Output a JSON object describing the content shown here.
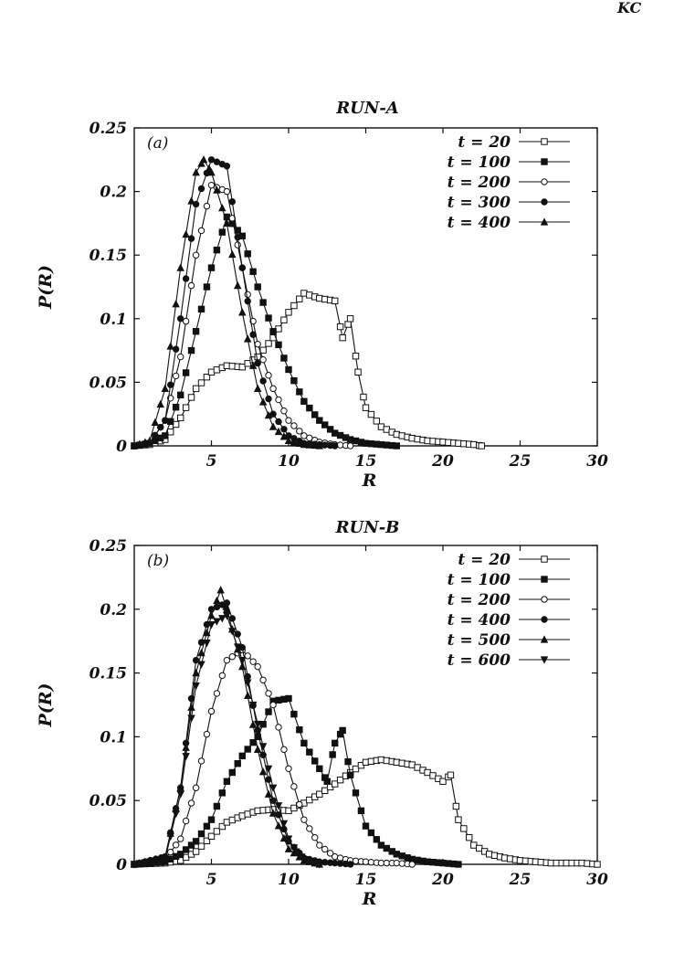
{
  "corner_mark": "KC",
  "chart_data": [
    {
      "type": "line",
      "title": "RUN-A",
      "panel_tag": "(a)",
      "xlabel": "R",
      "ylabel": "P(R)",
      "xlim": [
        0,
        30
      ],
      "ylim": [
        0,
        0.25
      ],
      "xticks": [
        5,
        10,
        15,
        20,
        25,
        30
      ],
      "xtick_labels": [
        "5",
        "10",
        "15",
        "20",
        "25",
        "30"
      ],
      "yticks": [
        0,
        0.05,
        0.1,
        0.15,
        0.2,
        0.25
      ],
      "ytick_labels": [
        "0",
        "0.05",
        "0.1",
        "0.15",
        "0.2",
        "0.25"
      ],
      "legend_position": "top-right",
      "grid": false,
      "series": [
        {
          "name": "t = 20",
          "marker": "open-square",
          "x": [
            0,
            1,
            2,
            3,
            4,
            5,
            6,
            7,
            8,
            9,
            10,
            11,
            12,
            13,
            13.5,
            14,
            14.5,
            15,
            16,
            17,
            18,
            19,
            20,
            21,
            22,
            22.5
          ],
          "y": [
            0,
            0.001,
            0.005,
            0.022,
            0.045,
            0.058,
            0.063,
            0.062,
            0.07,
            0.085,
            0.105,
            0.12,
            0.116,
            0.114,
            0.085,
            0.1,
            0.058,
            0.03,
            0.015,
            0.009,
            0.006,
            0.004,
            0.003,
            0.002,
            0.001,
            0
          ]
        },
        {
          "name": "t = 100",
          "marker": "filled-square",
          "x": [
            0,
            1,
            2,
            3,
            4,
            5,
            6,
            7,
            8,
            9,
            10,
            11,
            12,
            13,
            14,
            15,
            16,
            17
          ],
          "y": [
            0,
            0.002,
            0.008,
            0.04,
            0.09,
            0.14,
            0.18,
            0.165,
            0.125,
            0.09,
            0.06,
            0.035,
            0.02,
            0.01,
            0.005,
            0.002,
            0.001,
            0
          ]
        },
        {
          "name": "t = 200",
          "marker": "open-circle",
          "x": [
            0,
            1,
            2,
            3,
            4,
            5,
            6,
            7,
            8,
            9,
            10,
            11,
            12,
            13,
            14
          ],
          "y": [
            0,
            0.002,
            0.02,
            0.07,
            0.15,
            0.205,
            0.2,
            0.14,
            0.08,
            0.045,
            0.02,
            0.008,
            0.003,
            0.001,
            0
          ]
        },
        {
          "name": "t = 300",
          "marker": "filled-circle",
          "x": [
            0,
            1,
            2,
            3,
            4,
            5,
            6,
            7,
            8,
            9,
            10,
            11,
            12,
            13
          ],
          "y": [
            0,
            0.002,
            0.02,
            0.1,
            0.19,
            0.225,
            0.22,
            0.14,
            0.065,
            0.025,
            0.008,
            0.002,
            0.001,
            0
          ]
        },
        {
          "name": "t = 400",
          "marker": "filled-triangle-up",
          "x": [
            0,
            1,
            2,
            3,
            4,
            4.5,
            5,
            6,
            7,
            8,
            9,
            10,
            11,
            12
          ],
          "y": [
            0,
            0.004,
            0.045,
            0.14,
            0.215,
            0.225,
            0.215,
            0.175,
            0.105,
            0.045,
            0.015,
            0.004,
            0.001,
            0
          ]
        }
      ]
    },
    {
      "type": "line",
      "title": "RUN-B",
      "panel_tag": "(b)",
      "xlabel": "R",
      "ylabel": "P(R)",
      "xlim": [
        0,
        30
      ],
      "ylim": [
        0,
        0.25
      ],
      "xticks": [
        5,
        10,
        15,
        20,
        25,
        30
      ],
      "xtick_labels": [
        "5",
        "10",
        "15",
        "20",
        "25",
        "30"
      ],
      "yticks": [
        0,
        0.05,
        0.1,
        0.15,
        0.2,
        0.25
      ],
      "ytick_labels": [
        "0",
        "0.05",
        "0.1",
        "0.15",
        "0.2",
        "0.25"
      ],
      "legend_position": "top-right",
      "grid": false,
      "series": [
        {
          "name": "t = 20",
          "marker": "open-square",
          "x": [
            0,
            2,
            3,
            4,
            5,
            6,
            7,
            8,
            9,
            10,
            11,
            12,
            13,
            14,
            15,
            16,
            17,
            18,
            19,
            20,
            20.5,
            21,
            22,
            23,
            24,
            25,
            26,
            27,
            28,
            29,
            30
          ],
          "y": [
            0,
            0.001,
            0.003,
            0.01,
            0.022,
            0.033,
            0.038,
            0.042,
            0.043,
            0.042,
            0.048,
            0.055,
            0.063,
            0.072,
            0.08,
            0.082,
            0.08,
            0.078,
            0.072,
            0.065,
            0.07,
            0.035,
            0.015,
            0.008,
            0.005,
            0.003,
            0.002,
            0.001,
            0.001,
            0.001,
            0
          ]
        },
        {
          "name": "t = 100",
          "marker": "filled-square",
          "x": [
            0,
            2,
            3,
            4,
            5,
            6,
            7,
            8,
            9,
            10,
            11,
            12,
            12.5,
            13,
            13.5,
            14,
            15,
            16,
            17,
            18,
            19,
            20,
            21
          ],
          "y": [
            0,
            0.002,
            0.008,
            0.018,
            0.035,
            0.065,
            0.085,
            0.1,
            0.128,
            0.13,
            0.095,
            0.075,
            0.065,
            0.095,
            0.105,
            0.07,
            0.03,
            0.015,
            0.008,
            0.004,
            0.002,
            0.001,
            0
          ]
        },
        {
          "name": "t = 200",
          "marker": "open-circle",
          "x": [
            0,
            2,
            3,
            4,
            5,
            6,
            7,
            8,
            9,
            10,
            11,
            12,
            13,
            14,
            15,
            16,
            17,
            18
          ],
          "y": [
            0,
            0.004,
            0.02,
            0.06,
            0.12,
            0.16,
            0.168,
            0.155,
            0.125,
            0.075,
            0.035,
            0.015,
            0.006,
            0.003,
            0.002,
            0.001,
            0.001,
            0
          ]
        },
        {
          "name": "t = 400",
          "marker": "filled-circle",
          "x": [
            0,
            2,
            3,
            4,
            5,
            6,
            7,
            8,
            9,
            10,
            11,
            12,
            13,
            14
          ],
          "y": [
            0,
            0.006,
            0.06,
            0.16,
            0.2,
            0.205,
            0.17,
            0.105,
            0.05,
            0.018,
            0.005,
            0.002,
            0.001,
            0
          ]
        },
        {
          "name": "t = 500",
          "marker": "filled-triangle-up",
          "x": [
            0,
            2,
            3,
            4,
            5,
            5.6,
            6,
            7,
            8,
            9,
            10,
            11,
            12
          ],
          "y": [
            0,
            0.005,
            0.06,
            0.15,
            0.195,
            0.215,
            0.2,
            0.155,
            0.09,
            0.04,
            0.012,
            0.003,
            0
          ]
        },
        {
          "name": "t = 600",
          "marker": "filled-triangle-down",
          "x": [
            0,
            2,
            3,
            4,
            5,
            6,
            7,
            8,
            9,
            10,
            10.5,
            11,
            12
          ],
          "y": [
            0,
            0.004,
            0.055,
            0.14,
            0.188,
            0.195,
            0.16,
            0.11,
            0.06,
            0.02,
            0.01,
            0.004,
            0
          ]
        }
      ]
    }
  ]
}
